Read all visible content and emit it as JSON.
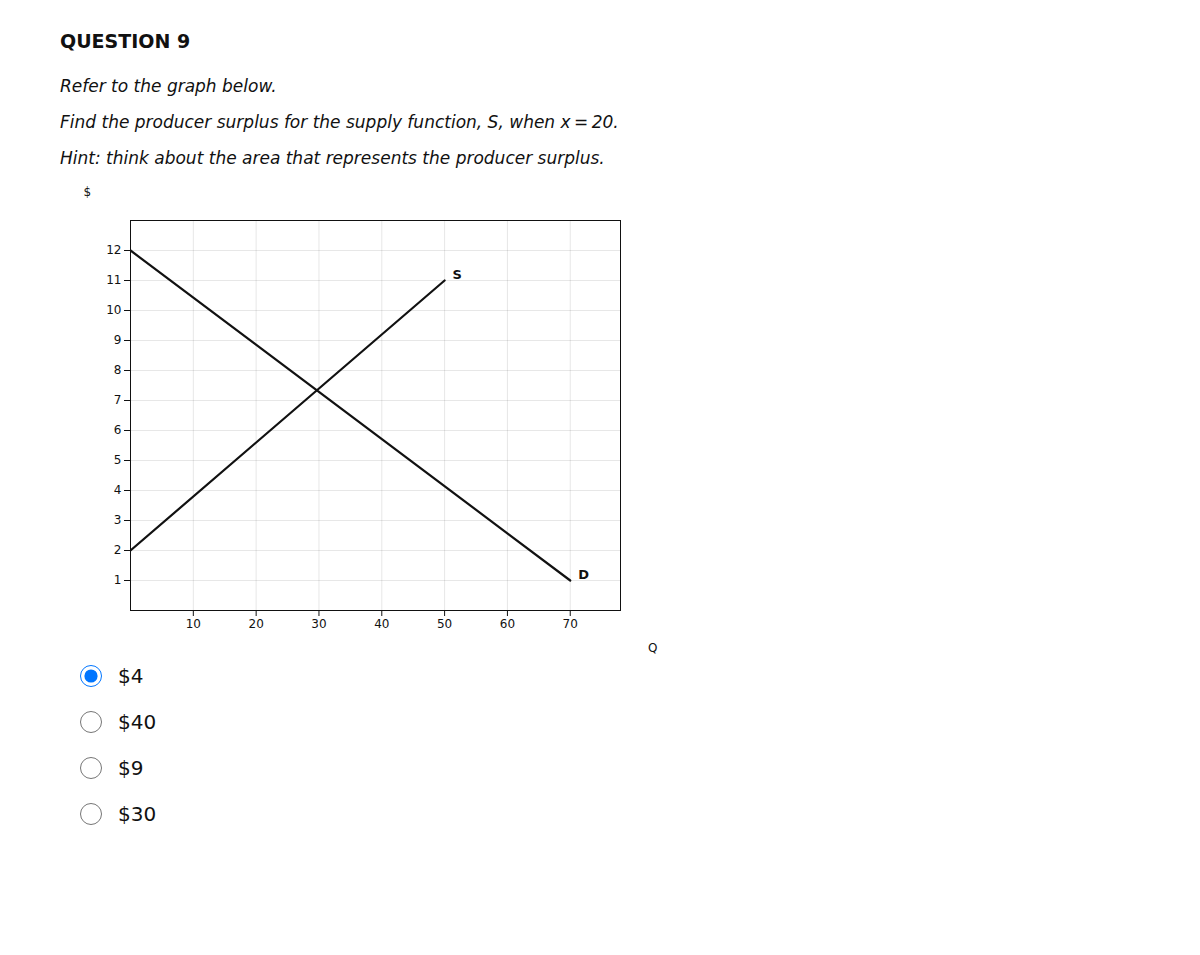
{
  "chart_data": {
    "type": "line",
    "title": "QUESTION 9",
    "subtitle": [
      "Refer to the graph below.",
      "Find the producer surplus for the supply function, S, when x = 20.",
      "Hint: think about the area that represents the producer surplus."
    ],
    "xlabel": "Q",
    "ylabel": "$",
    "xlim": [
      0,
      78
    ],
    "ylim": [
      0,
      13
    ],
    "xticks": [
      10,
      20,
      30,
      40,
      50,
      60,
      70
    ],
    "yticks": [
      1,
      2,
      3,
      4,
      5,
      6,
      7,
      8,
      9,
      10,
      11,
      12
    ],
    "grid": true,
    "series": [
      {
        "name": "S",
        "color": "#111111",
        "x": [
          0,
          50
        ],
        "values": [
          2,
          11
        ]
      },
      {
        "name": "D",
        "color": "#111111",
        "x": [
          0,
          70
        ],
        "values": [
          12,
          1
        ]
      }
    ],
    "answers": [
      {
        "label": "$4",
        "selected": true
      },
      {
        "label": "$40",
        "selected": false
      },
      {
        "label": "$9",
        "selected": false
      },
      {
        "label": "$30",
        "selected": false
      }
    ]
  }
}
